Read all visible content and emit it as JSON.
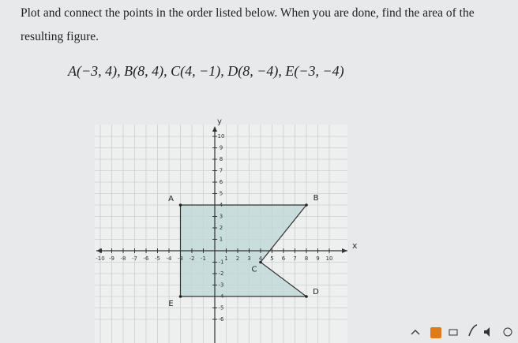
{
  "problem": {
    "line1": "Plot and connect the points in the order listed below. When you are done, find the area of the",
    "line2": "resulting figure.",
    "expression": "A(−3, 4), B(8, 4), C(4, −1), D(8, −4), E(−3, −4)"
  },
  "graph": {
    "x_label": "x",
    "y_label": "y",
    "xticks": [
      -10,
      -9,
      -8,
      -7,
      -6,
      -5,
      -4,
      -3,
      -2,
      -1,
      1,
      2,
      3,
      4,
      5,
      6,
      7,
      8,
      9,
      10
    ],
    "yticks": [
      -6,
      -5,
      -4,
      -3,
      -2,
      -1,
      1,
      2,
      3,
      4,
      5,
      6,
      7,
      8,
      9,
      10
    ],
    "points": [
      {
        "label": "A",
        "x": -3,
        "y": 4
      },
      {
        "label": "B",
        "x": 8,
        "y": 4
      },
      {
        "label": "C",
        "x": 4,
        "y": -1
      },
      {
        "label": "D",
        "x": 8,
        "y": -4
      },
      {
        "label": "E",
        "x": -3,
        "y": -4
      }
    ]
  }
}
